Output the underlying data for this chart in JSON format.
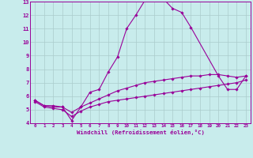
{
  "xlabel": "Windchill (Refroidissement éolien,°C)",
  "bg_color": "#c8ecec",
  "line_color": "#990099",
  "grid_color": "#aacccc",
  "xlim": [
    -0.5,
    23.5
  ],
  "ylim": [
    4,
    13
  ],
  "xticks": [
    0,
    1,
    2,
    3,
    4,
    5,
    6,
    7,
    8,
    9,
    10,
    11,
    12,
    13,
    14,
    15,
    16,
    17,
    18,
    19,
    20,
    21,
    22,
    23
  ],
  "yticks": [
    4,
    5,
    6,
    7,
    8,
    9,
    10,
    11,
    12,
    13
  ],
  "series": [
    {
      "x": [
        0,
        1,
        2,
        3,
        4,
        5,
        6,
        7,
        8,
        9,
        10,
        11,
        12,
        13,
        14,
        15,
        16,
        17,
        20,
        21,
        22,
        23
      ],
      "y": [
        5.7,
        5.3,
        5.3,
        5.2,
        4.2,
        5.2,
        6.3,
        6.5,
        7.8,
        8.9,
        11.0,
        12.0,
        13.1,
        13.2,
        13.2,
        12.5,
        12.2,
        11.1,
        7.5,
        6.5,
        6.5,
        7.5
      ]
    },
    {
      "x": [
        0,
        1,
        2,
        3,
        4,
        5,
        6,
        7,
        8,
        9,
        10,
        11,
        12,
        13,
        14,
        15,
        16,
        17,
        18,
        19,
        20,
        21,
        22,
        23
      ],
      "y": [
        5.7,
        5.3,
        5.2,
        5.2,
        4.8,
        5.2,
        5.5,
        5.8,
        6.1,
        6.4,
        6.6,
        6.8,
        7.0,
        7.1,
        7.2,
        7.3,
        7.4,
        7.5,
        7.5,
        7.6,
        7.6,
        7.5,
        7.4,
        7.5
      ]
    },
    {
      "x": [
        0,
        1,
        2,
        3,
        4,
        5,
        6,
        7,
        8,
        9,
        10,
        11,
        12,
        13,
        14,
        15,
        16,
        17,
        18,
        19,
        20,
        21,
        22,
        23
      ],
      "y": [
        5.6,
        5.2,
        5.1,
        5.0,
        4.5,
        4.9,
        5.2,
        5.4,
        5.6,
        5.7,
        5.8,
        5.9,
        6.0,
        6.1,
        6.2,
        6.3,
        6.4,
        6.5,
        6.6,
        6.7,
        6.8,
        6.9,
        7.0,
        7.2
      ]
    }
  ]
}
